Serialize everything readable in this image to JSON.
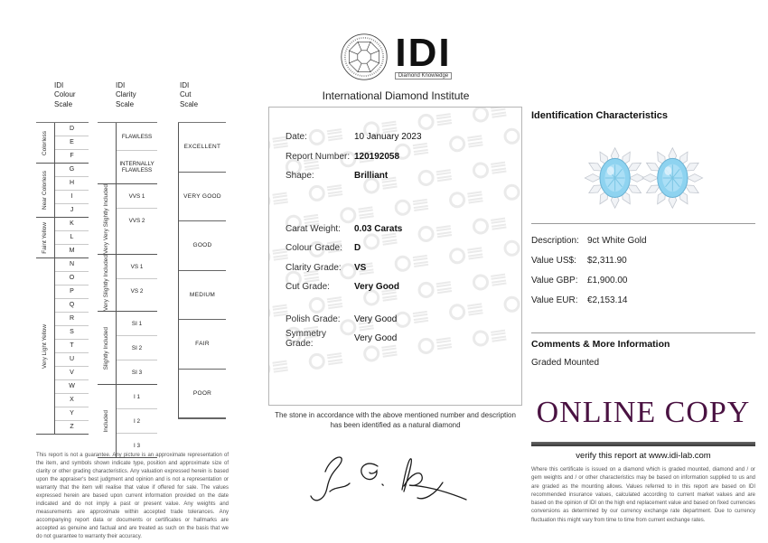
{
  "logo": {
    "acronym": "IDI",
    "tagline": "Diamond Knowledge",
    "institute": "International Diamond Institute",
    "emblem_icon": "diamond-in-circle-icon"
  },
  "scales": {
    "colour": {
      "title": "IDI\nColour\nScale",
      "groups": [
        {
          "label": "Colorless",
          "grades": [
            "D",
            "E",
            "F"
          ]
        },
        {
          "label": "Near Colorless",
          "grades": [
            "G",
            "H",
            "I",
            "J"
          ]
        },
        {
          "label": "Faint Yellow",
          "grades": [
            "K",
            "L",
            "M"
          ]
        },
        {
          "label": "Very Light Yellow",
          "grades": [
            "N",
            "O",
            "P",
            "Q",
            "R",
            "S",
            "T",
            "U",
            "V",
            "W",
            "X",
            "Y",
            "Z"
          ]
        }
      ]
    },
    "clarity": {
      "title": "IDI\nClarity\nScale",
      "groups": [
        {
          "label": "",
          "grades": [
            "FLAWLESS",
            "INTERNALLY FLAWLESS"
          ]
        },
        {
          "label": "Very Very Slightly Included",
          "grades": [
            "VVS 1",
            "VVS 2"
          ]
        },
        {
          "label": "Very Slightly Included",
          "grades": [
            "VS 1",
            "VS 2"
          ]
        },
        {
          "label": "Slightly Included",
          "grades": [
            "SI 1",
            "SI 2",
            "SI 3"
          ]
        },
        {
          "label": "Included",
          "grades": [
            "I 1",
            "I 2",
            "I 3"
          ]
        }
      ]
    },
    "cut": {
      "title": "IDI\nCut\nScale",
      "grades": [
        "EXCELLENT",
        "VERY GOOD",
        "GOOD",
        "MEDIUM",
        "FAIR",
        "POOR"
      ]
    }
  },
  "certificate": {
    "sections": [
      {
        "rows": [
          {
            "label": "Date:",
            "value": "10 January 2023",
            "bold": false
          },
          {
            "label": "Report Number:",
            "value": "120192058",
            "bold": true
          },
          {
            "label": "Shape:",
            "value": "Brilliant",
            "bold": true
          }
        ]
      },
      {
        "rows": [
          {
            "label": "Carat Weight:",
            "value": "0.03 Carats",
            "bold": true
          },
          {
            "label": "Colour Grade:",
            "value": "D",
            "bold": true
          },
          {
            "label": "Clarity Grade:",
            "value": "VS",
            "bold": true
          },
          {
            "label": "Cut Grade:",
            "value": "Very Good",
            "bold": true
          }
        ]
      },
      {
        "rows": [
          {
            "label": "Polish Grade:",
            "value": "Very Good",
            "bold": false
          },
          {
            "label": "Symmetry Grade:",
            "value": "Very Good",
            "bold": false
          }
        ]
      }
    ],
    "statement": "The stone in accordance with the above mentioned number and description has been identified as a natural diamond",
    "signature_icon": "handwritten-signature"
  },
  "identification": {
    "heading": "Identification Characteristics",
    "photo_icon": "blue-gemstone-cluster-earrings-photo",
    "rows": [
      {
        "label": "Description:",
        "value": "9ct White Gold"
      },
      {
        "label": "Value US$:",
        "value": "$2,311.90"
      },
      {
        "label": "Value GBP:",
        "value": "£1,900.00"
      },
      {
        "label": "Value EUR:",
        "value": "€2,153.14"
      }
    ],
    "comments_heading": "Comments & More Information",
    "comments": "Graded Mounted",
    "online_copy": "ONLINE COPY",
    "verify": "verify this report at www.idi-lab.com",
    "disclaimer": "Where this certificate is issued on a diamond which is graded mounted, diamond and / or gem weights and / or other characteristics may be based on information supplied to us and are graded as the mounting allows. Values referred to in this report are based on IDI recommended insurance values, calculated according to current market values and are based on the opinion of IDI on the high end replacement value and based on fixed currencies conversions as determined by our currency exchange rate department. Due to currency fluctuation this might vary from time to time from current exchange rates."
  },
  "footer": {
    "left_disclaimer": "This report is not a guarantee. Any picture is an approximate representation of the item, and symbols shown indicate type, position and approximate size of clarity or other grading characteristics. Any valuation expressed herein is based upon the appraiser's best judgment and opinion and is not a representation or warranty that the item will realise that value if offered for sale. The values expressed herein are based upon current information provided on the date indicated and do not imply a past or present value. Any weights and measurements are approximate within accepted trade tolerances. Any accompanying report data or documents or certificates or hallmarks are accepted as genuine and factual and are treated as such on the basis that we do not guarantee to warranty their accuracy."
  },
  "colors": {
    "online_copy_purple": "#4a1242",
    "verify_bar_gray": "#4a4a4a",
    "stone_blue": "#8ed3f0",
    "halo_gray": "#dfe3e8",
    "watermark_gray": "#eaeaea"
  }
}
